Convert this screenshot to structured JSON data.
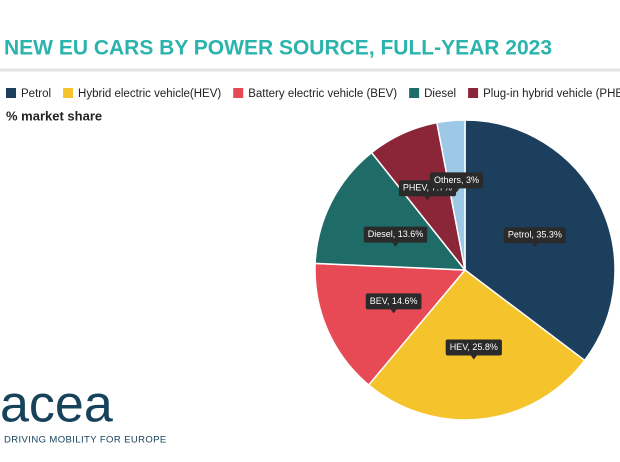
{
  "chart_data": {
    "type": "pie",
    "title": "NEW EU CARS BY POWER SOURCE, FULL-YEAR 2023",
    "subtitle": "% market share",
    "categories": [
      "Petrol",
      "Hybrid electric vehicle(HEV)",
      "Battery electric vehicle (BEV)",
      "Diesel",
      "Plug-in hybrid vehicle (PHEV)",
      "Others"
    ],
    "values": [
      35.3,
      25.8,
      14.6,
      13.6,
      7.7,
      3
    ],
    "value_labels": [
      "Petrol, 35.3%",
      "HEV, 25.8%",
      "BEV, 14.6%",
      "Diesel, 13.6%",
      "PHEV, 7.7%",
      "Others, 3%"
    ],
    "colors": [
      "#1d3f5e",
      "#f5c42c",
      "#e84a55",
      "#1f6b68",
      "#8a2637",
      "#9dc8e6"
    ],
    "legend": "top",
    "logo": "acea",
    "logo_tagline": "DRIVING MOBILITY FOR EUROPE"
  }
}
